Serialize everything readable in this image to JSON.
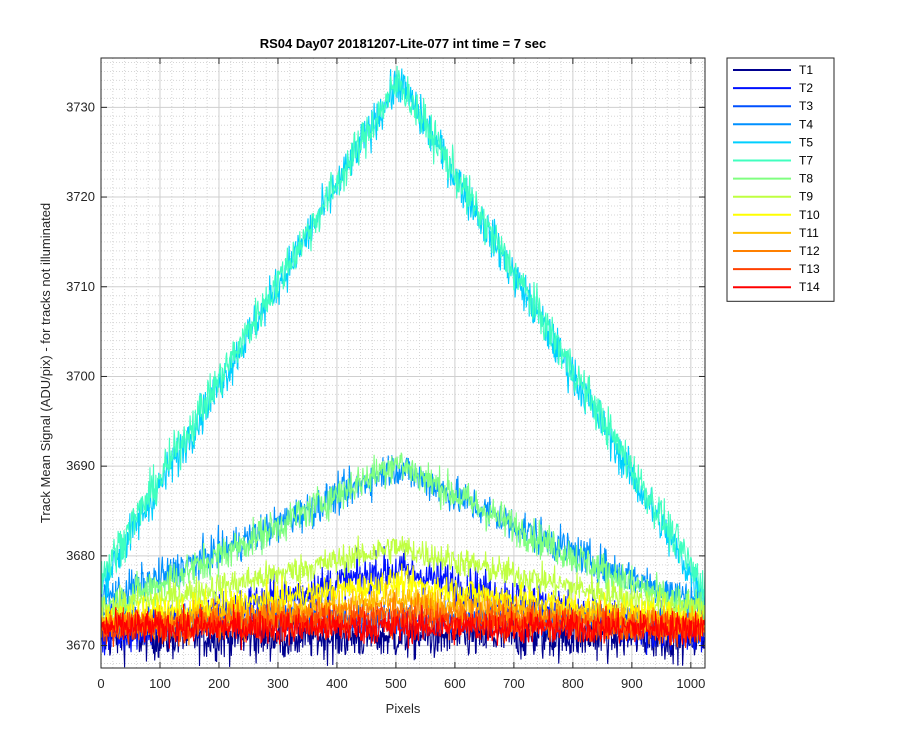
{
  "chart_data": {
    "type": "line",
    "title": "RS04 Day07 20181207-Lite-077 int time = 7 sec",
    "xlabel": "Pixels",
    "ylabel": "Track Mean Signal (ADU/pix) - for tracks not illuminated",
    "xlim": [
      0,
      1024
    ],
    "ylim": [
      3667.5,
      3735.5
    ],
    "xticks": [
      0,
      100,
      200,
      300,
      400,
      500,
      600,
      700,
      800,
      900,
      1000
    ],
    "yticks": [
      3670,
      3680,
      3690,
      3700,
      3710,
      3720,
      3730
    ],
    "grid": true,
    "minor_grid": true,
    "legend_position": "outside-top-right",
    "series": [
      {
        "name": "T1",
        "color": "#00008f",
        "shape": "flat",
        "base": 3671,
        "peak": 3671,
        "noise": 1.4
      },
      {
        "name": "T2",
        "color": "#0010ff",
        "shape": "hump",
        "base": 3671,
        "peak": 3678.5,
        "noise": 1.3
      },
      {
        "name": "T3",
        "color": "#0050ff",
        "shape": "hump",
        "base": 3673,
        "peak": 3673,
        "noise": 1.0
      },
      {
        "name": "T4",
        "color": "#0090ff",
        "shape": "hump",
        "base": 3675,
        "peak": 3690,
        "noise": 1.1
      },
      {
        "name": "T5",
        "color": "#00cfff",
        "shape": "hump",
        "base": 3676,
        "peak": 3733,
        "noise": 1.2
      },
      {
        "name": "T7",
        "color": "#40ffbf",
        "shape": "hump",
        "base": 3677,
        "peak": 3733,
        "noise": 1.2
      },
      {
        "name": "T8",
        "color": "#80ff80",
        "shape": "hump",
        "base": 3674,
        "peak": 3690.5,
        "noise": 1.1
      },
      {
        "name": "T9",
        "color": "#bfff40",
        "shape": "hump",
        "base": 3674,
        "peak": 3681,
        "noise": 0.9
      },
      {
        "name": "T10",
        "color": "#ffff00",
        "shape": "hump",
        "base": 3673,
        "peak": 3677,
        "noise": 0.9
      },
      {
        "name": "T11",
        "color": "#ffbf00",
        "shape": "hump",
        "base": 3672.5,
        "peak": 3675,
        "noise": 0.9
      },
      {
        "name": "T12",
        "color": "#ff8000",
        "shape": "hump",
        "base": 3672,
        "peak": 3674,
        "noise": 1.0
      },
      {
        "name": "T13",
        "color": "#ff4000",
        "shape": "hump",
        "base": 3672,
        "peak": 3673,
        "noise": 1.0
      },
      {
        "name": "T14",
        "color": "#ff0000",
        "shape": "flat",
        "base": 3672,
        "peak": 3672,
        "noise": 1.0
      }
    ]
  }
}
